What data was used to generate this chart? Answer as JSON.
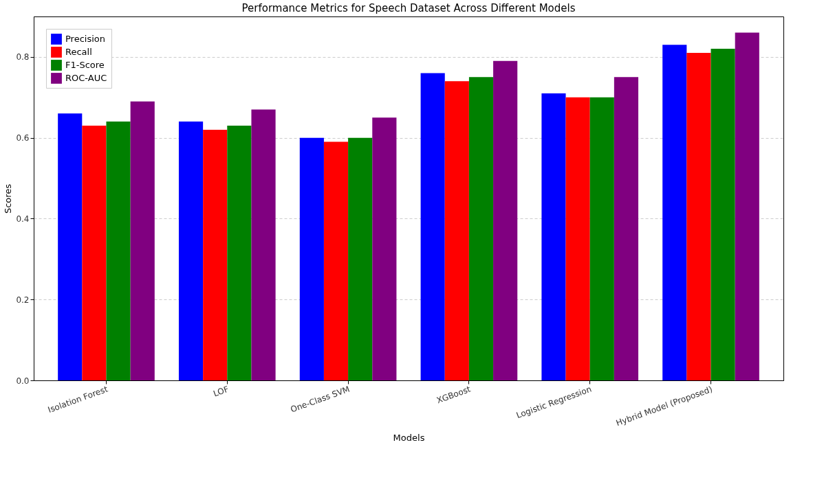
{
  "chart_data": {
    "type": "bar",
    "title": "Performance Metrics for Speech Dataset Across Different Models",
    "xlabel": "Models",
    "ylabel": "Scores",
    "categories": [
      "Isolation Forest",
      "LOF",
      "One-Class SVM",
      "XGBoost",
      "Logistic Regression",
      "Hybrid Model (Proposed)"
    ],
    "series": [
      {
        "name": "Precision",
        "color": "#0000ff",
        "values": [
          0.66,
          0.64,
          0.6,
          0.76,
          0.71,
          0.83
        ]
      },
      {
        "name": "Recall",
        "color": "#ff0000",
        "values": [
          0.63,
          0.62,
          0.59,
          0.74,
          0.7,
          0.81
        ]
      },
      {
        "name": "F1-Score",
        "color": "#008000",
        "values": [
          0.64,
          0.63,
          0.6,
          0.75,
          0.7,
          0.82
        ]
      },
      {
        "name": "ROC-AUC",
        "color": "#800080",
        "values": [
          0.69,
          0.67,
          0.65,
          0.79,
          0.75,
          0.86
        ]
      }
    ],
    "ylim": [
      0,
      0.9
    ],
    "yticks": [
      {
        "value": 0,
        "label": "0.0"
      },
      {
        "value": 0.2,
        "label": "0.2"
      },
      {
        "value": 0.4,
        "label": "0.4"
      },
      {
        "value": 0.6,
        "label": "0.6"
      },
      {
        "value": 0.8,
        "label": "0.8"
      }
    ],
    "grid": "y",
    "legend": "top left"
  }
}
